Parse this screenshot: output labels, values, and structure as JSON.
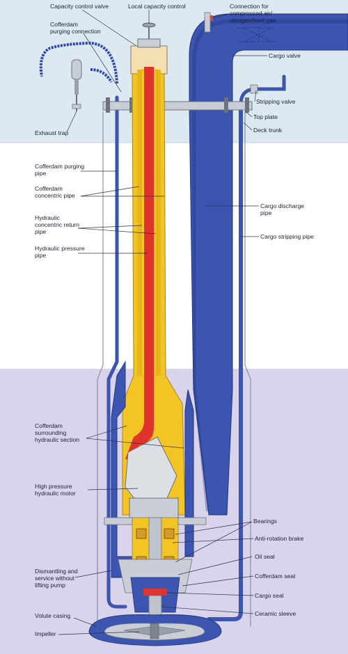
{
  "colors": {
    "sky": "#dde9f1",
    "deck": "#ffffff",
    "liquid": "#d9d3ec",
    "blue_pipe": "#3b55b0",
    "blue_dark": "#23357e",
    "red_pipe": "#e0332b",
    "yellow": "#f2c524",
    "metal": "#c9ced6",
    "metal_dark": "#7c8490",
    "leader": "#2c2f44"
  },
  "labels": {
    "capacity_control_valve": "Capacity control valve",
    "local_capacity_control": "Local capacity control",
    "connection_compressed": "Connection for\ncompressed air/\nnitrogen/inert gas",
    "cofferdam_purging_connection": "Cofferdam\npurging connection",
    "cargo_valve": "Cargo valve",
    "stripping_valve": "Stripping valve",
    "top_plate": "Top plate",
    "deck_trunk": "Deck trunk",
    "exhaust_trap": "Exhaust trap",
    "cofferdam_purging_pipe": "Cofferdam purging\npipe",
    "cofferdam_concentric_pipe": "Cofferdam\nconcentric pipe",
    "hydraulic_concentric_return": "Hydraulic\nconcentric return\npipe",
    "hydraulic_pressure_pipe": "Hydraulic pressure\npipe",
    "cargo_discharge_pipe": "Cargo discharge\npipe",
    "cargo_stripping_pipe": "Cargo stripping pipe",
    "cofferdam_surrounding": "Cofferdam\nsurrounding\nhydraulic section",
    "high_pressure_motor": "High pressure\nhydraulic motor",
    "bearings": "Bearings",
    "anti_rotation_brake": "Anti-rotation brake",
    "oil_seal": "Oil seal",
    "cofferdam_seal": "Cofferdam seal",
    "cargo_seal": "Cargo seal",
    "ceramic_sleeve": "Ceramic sleeve",
    "dismantling": "Dismantling and\nservice without\nlifting pump",
    "volute_casing": "Volute casing",
    "impeller": "Impeller"
  }
}
